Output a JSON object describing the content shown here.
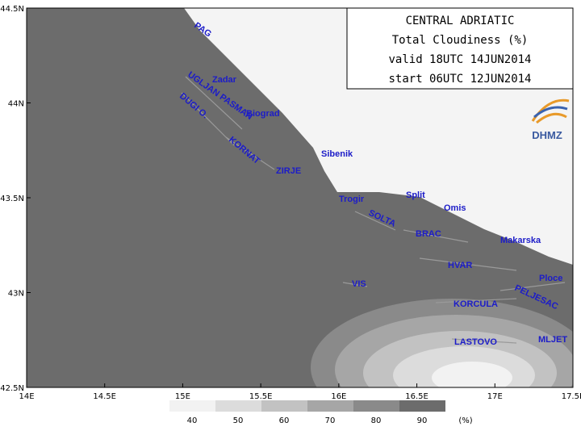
{
  "header": {
    "title": "CENTRAL ADRIATIC",
    "subtitle": "Total Cloudiness (%)",
    "valid": "valid 18UTC 14JUN2014",
    "start": "start 06UTC 12JUN2014",
    "logo": "DHMZ"
  },
  "map": {
    "lon_ticks": [
      {
        "value": 14,
        "label": "14E"
      },
      {
        "value": 14.5,
        "label": "14.5E"
      },
      {
        "value": 15,
        "label": "15E"
      },
      {
        "value": 15.5,
        "label": "15.5E"
      },
      {
        "value": 16,
        "label": "16E"
      },
      {
        "value": 16.5,
        "label": "16.5E"
      },
      {
        "value": 17,
        "label": "17E"
      },
      {
        "value": 17.5,
        "label": "17.5E"
      }
    ],
    "lat_ticks": [
      {
        "value": 42.5,
        "label": "42.5N"
      },
      {
        "value": 43,
        "label": "43N"
      },
      {
        "value": 43.5,
        "label": "43.5N"
      },
      {
        "value": 44,
        "label": "44N"
      },
      {
        "value": 44.5,
        "label": "44.5N"
      }
    ],
    "places": [
      "PAG",
      "Zadar",
      "UGLJAN PASMAN",
      "DUGI O.",
      "Biograd",
      "KORNAT",
      "Sibenik",
      "ZIRJE",
      "Trogir",
      "Split",
      "SOLTA",
      "Omis",
      "BRAC",
      "Makarska",
      "HVAR",
      "Ploce",
      "VIS",
      "PELJESAC",
      "KORCULA",
      "LASTOVO",
      "MLJET"
    ]
  },
  "legend": {
    "levels": [
      40,
      50,
      60,
      70,
      80,
      90
    ],
    "unit": "(%)"
  }
}
